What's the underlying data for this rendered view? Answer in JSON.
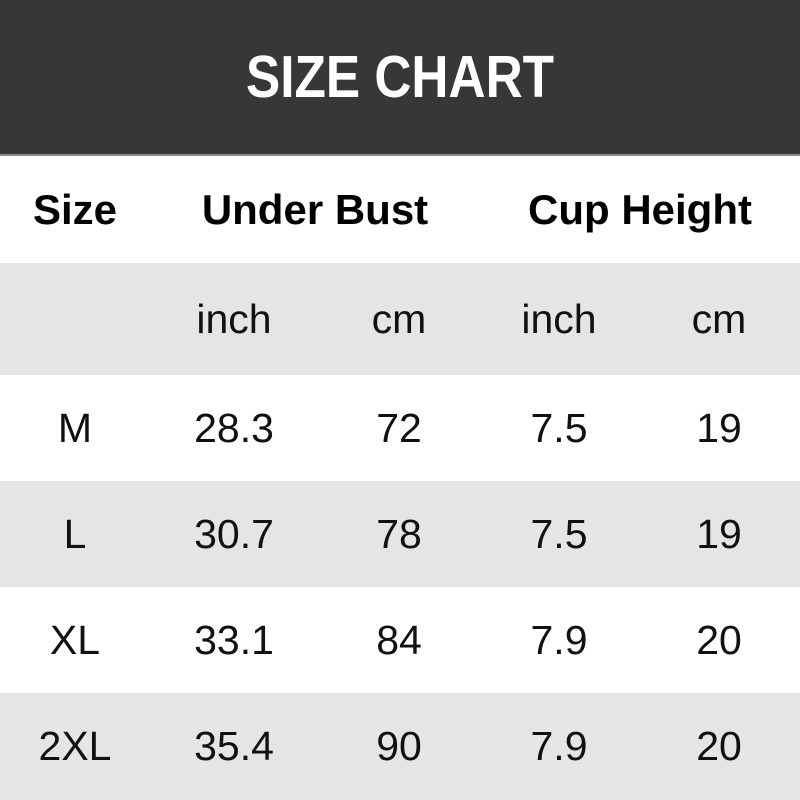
{
  "banner": {
    "title": "SIZE CHART"
  },
  "table": {
    "col_groups": [
      {
        "label": "Size"
      },
      {
        "label": "Under Bust"
      },
      {
        "label": "Cup Height"
      }
    ],
    "unit_headers": [
      "inch",
      "cm",
      "inch",
      "cm"
    ],
    "rows": [
      {
        "size": "M",
        "values": [
          "28.3",
          "72",
          "7.5",
          "19"
        ]
      },
      {
        "size": "L",
        "values": [
          "30.7",
          "78",
          "7.5",
          "19"
        ]
      },
      {
        "size": "XL",
        "values": [
          "33.1",
          "84",
          "7.9",
          "20"
        ]
      },
      {
        "size": "2XL",
        "values": [
          "35.4",
          "90",
          "7.9",
          "20"
        ]
      }
    ]
  },
  "colors": {
    "banner_bg": "#393637",
    "banner_text": "#ffffff",
    "row_alt_bg": "#e6e5e5",
    "row_bg": "#ffffff",
    "text": "#111111"
  },
  "chart_data": {
    "type": "table",
    "title": "SIZE CHART",
    "columns": [
      "Size",
      "Under Bust (inch)",
      "Under Bust (cm)",
      "Cup Height (inch)",
      "Cup Height (cm)"
    ],
    "rows": [
      [
        "M",
        28.3,
        72,
        7.5,
        19
      ],
      [
        "L",
        30.7,
        78,
        7.5,
        19
      ],
      [
        "XL",
        33.1,
        84,
        7.9,
        20
      ],
      [
        "2XL",
        35.4,
        90,
        7.9,
        20
      ]
    ]
  }
}
